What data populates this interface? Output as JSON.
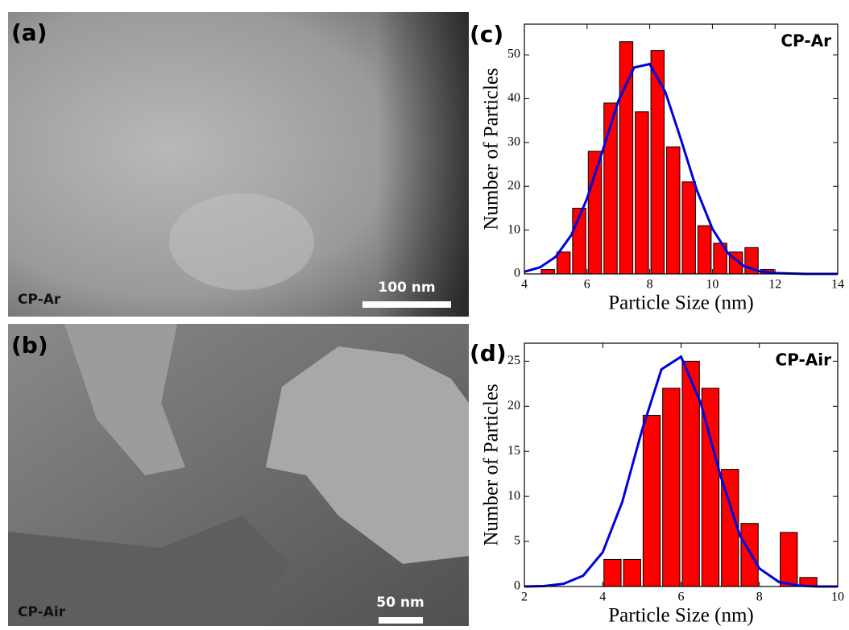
{
  "images": [
    {
      "panel": "(a)",
      "label": "CP-Ar",
      "scale": "100 nm"
    },
    {
      "panel": "(b)",
      "label": "CP-Air",
      "scale": "50 nm"
    }
  ],
  "chart_data": [
    {
      "type": "histogram",
      "panel": "(c)",
      "annotation": "CP-Ar",
      "xlabel": "Particle Size (nm)",
      "ylabel": "Number of Particles",
      "bins": [
        4.5,
        5,
        5.5,
        6,
        6.5,
        7,
        7.5,
        8,
        8.5,
        9,
        9.5,
        10,
        10.5,
        11,
        11.5,
        12
      ],
      "counts": [
        1,
        5,
        15,
        28,
        39,
        53,
        37,
        51,
        29,
        21,
        11,
        7,
        5,
        6,
        1
      ],
      "color": "#ff0000",
      "fit": {
        "color": "#0000dd",
        "x": [
          4,
          4.5,
          5,
          5.5,
          6,
          6.5,
          7,
          7.5,
          8,
          8.5,
          9,
          9.5,
          10,
          10.5,
          11,
          11.5,
          12,
          12.5,
          13,
          13.5,
          14
        ],
        "values": [
          0.5,
          1.5,
          3.9,
          8.9,
          17.2,
          28.2,
          39.5,
          47.1,
          47.9,
          41.5,
          30.6,
          19.2,
          10.3,
          4.7,
          1.8,
          0.6,
          0.2,
          0.1,
          0,
          0,
          0
        ]
      },
      "xlim": [
        4,
        14
      ],
      "xticks": [
        4,
        6,
        8,
        10,
        12,
        14
      ],
      "ylim": [
        0,
        57
      ],
      "yticks": [
        0,
        10,
        20,
        30,
        40,
        50
      ]
    },
    {
      "type": "histogram",
      "panel": "(d)",
      "annotation": "CP-Air",
      "xlabel": "Particle Size (nm)",
      "ylabel": "Number of Particles",
      "bins": [
        4,
        4.5,
        5,
        5.5,
        6,
        6.5,
        7,
        7.5,
        8,
        8.5,
        9,
        9.5
      ],
      "counts": [
        3,
        3,
        19,
        22,
        25,
        22,
        13,
        7,
        0,
        6,
        1
      ],
      "color": "#ff0000",
      "fit": {
        "color": "#0000dd",
        "x": [
          2,
          2.5,
          3,
          3.5,
          4,
          4.5,
          5,
          5.5,
          6,
          6.5,
          7,
          7.5,
          8,
          8.5,
          9,
          9.5,
          10
        ],
        "values": [
          0,
          0.05,
          0.3,
          1.2,
          3.8,
          9.4,
          17.3,
          24.1,
          25.5,
          20.4,
          12.4,
          5.7,
          2.0,
          0.5,
          0.1,
          0,
          0
        ]
      },
      "xlim": [
        2,
        10
      ],
      "xticks": [
        2,
        4,
        6,
        8,
        10
      ],
      "ylim": [
        0,
        27
      ],
      "yticks": [
        0,
        5,
        10,
        15,
        20,
        25
      ]
    }
  ]
}
